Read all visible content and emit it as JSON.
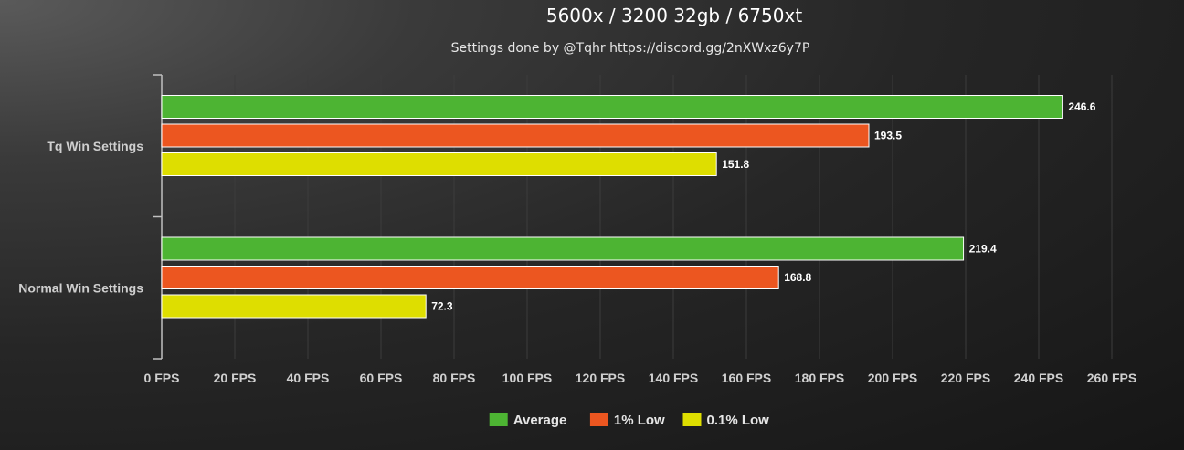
{
  "chart_data": {
    "type": "bar",
    "orientation": "horizontal",
    "title": "5600x / 3200 32gb / 6750xt",
    "subtitle": "Settings done by @Tqhr https://discord.gg/2nXWxz6y7P",
    "categories": [
      "Tq Win Settings",
      "Normal Win Settings"
    ],
    "series": [
      {
        "name": "Average",
        "color": "#4db433",
        "values": [
          246.6,
          219.4
        ]
      },
      {
        "name": "1% Low",
        "color": "#ec5620",
        "values": [
          193.5,
          168.8
        ]
      },
      {
        "name": "0.1% Low",
        "color": "#dede00",
        "values": [
          151.8,
          72.3
        ]
      }
    ],
    "x_ticks": [
      0,
      20,
      40,
      60,
      80,
      100,
      120,
      140,
      160,
      180,
      200,
      220,
      240,
      260
    ],
    "x_tick_suffix": " FPS",
    "xlim": [
      0,
      260
    ],
    "grid": true,
    "legend_position": "bottom-center",
    "data_labels": true
  }
}
